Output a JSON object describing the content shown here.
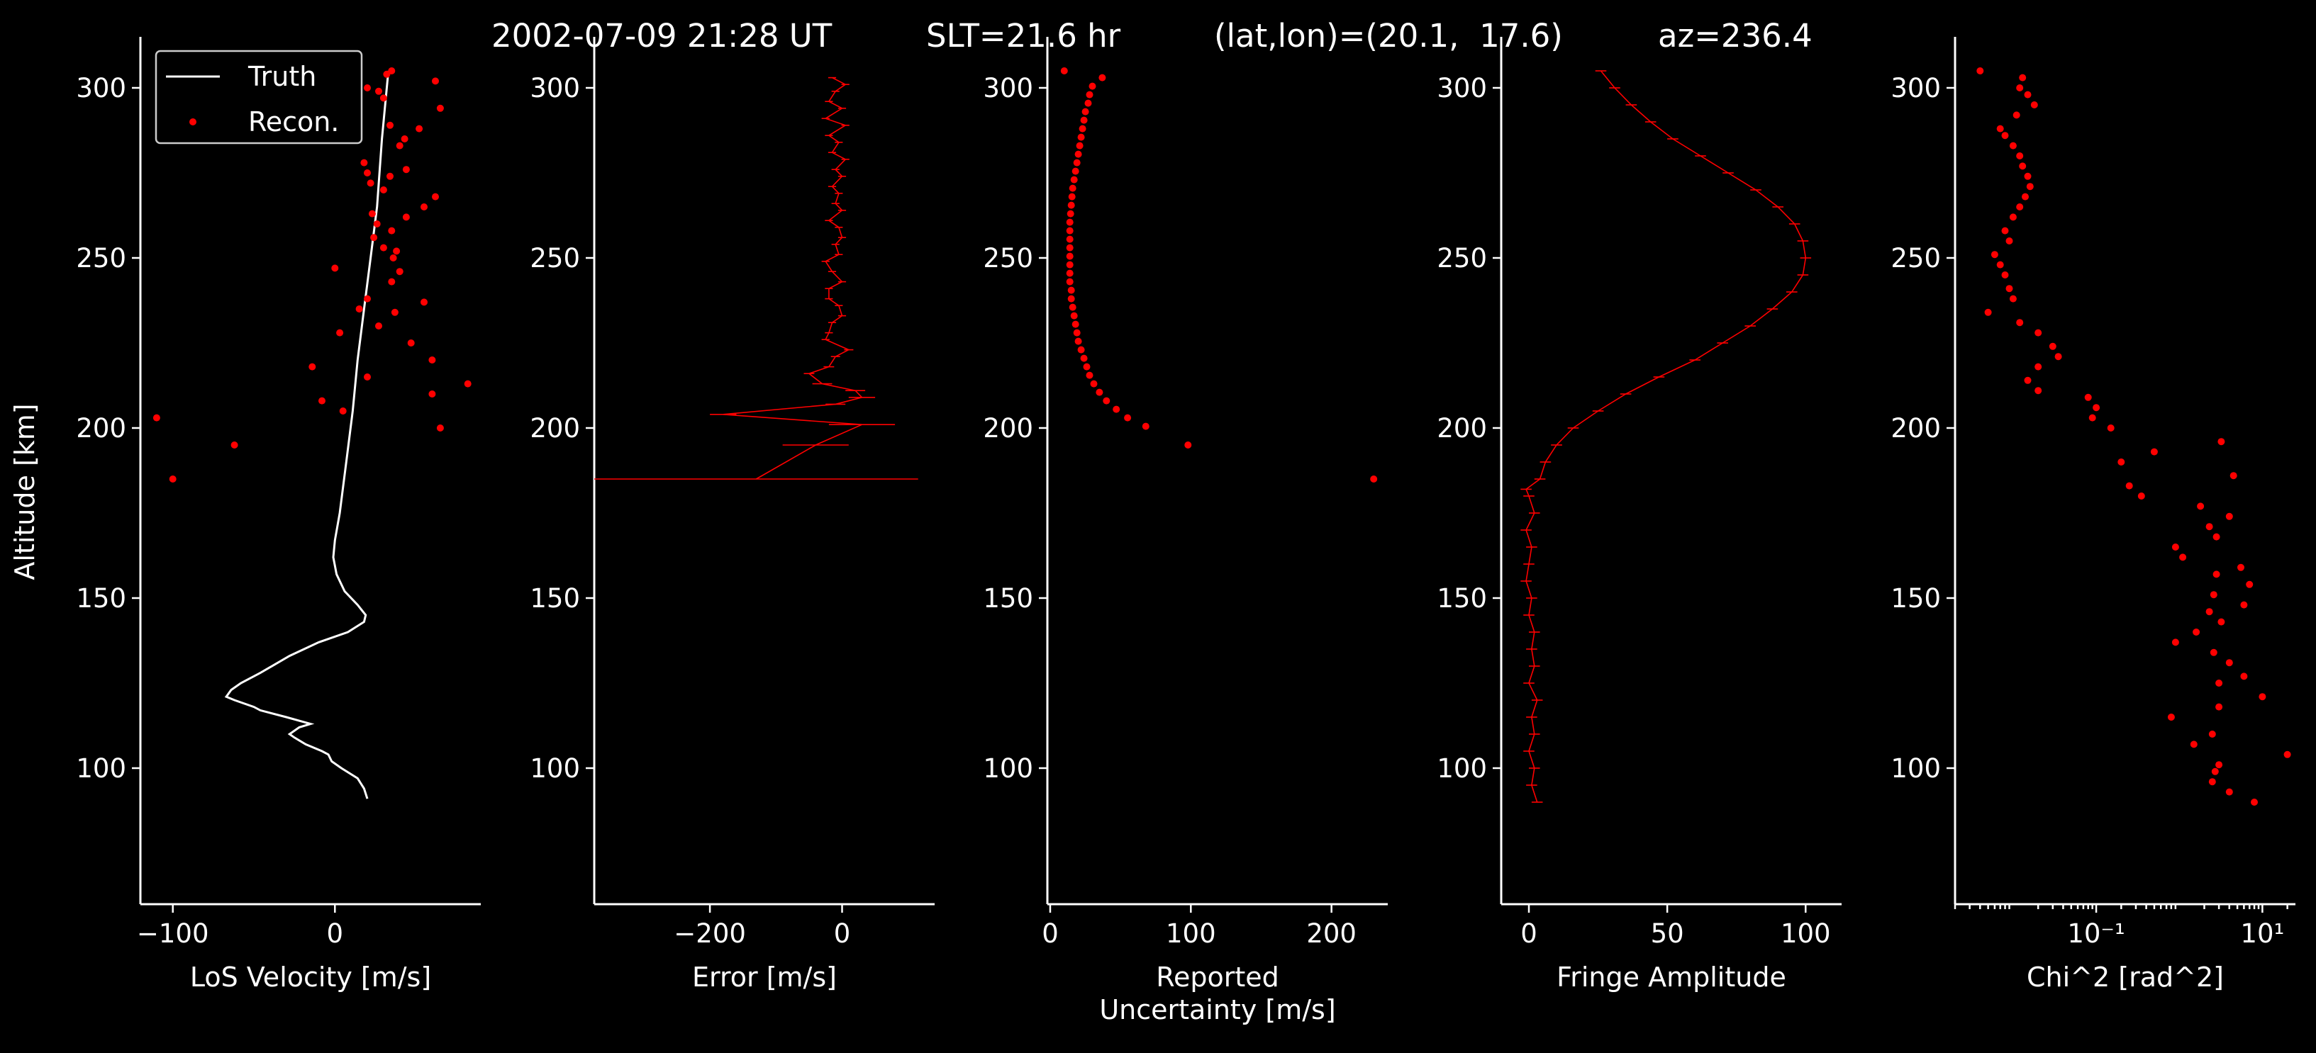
{
  "suptitle": {
    "time": "2002-07-09 21:28 UT",
    "slt": "SLT=21.6 hr",
    "latlon": "(lat,lon)=(20.1,  17.6)",
    "az": "az=236.4"
  },
  "colors": {
    "background": "#000000",
    "foreground": "#ffffff",
    "data": "#ff0000"
  },
  "chart_data": [
    {
      "type": "line",
      "xlabel": "LoS Velocity [m/s]",
      "ylabel": "Altitude [km]",
      "xlim": [
        -120,
        90
      ],
      "ylim": [
        60,
        315
      ],
      "xticks": [
        -100,
        0
      ],
      "xticklabels": [
        "−100",
        "0"
      ],
      "yticks": [
        100,
        150,
        200,
        250,
        300
      ],
      "yticklabels": [
        "100",
        "150",
        "200",
        "250",
        "300"
      ],
      "legend": {
        "placement": "top-left",
        "entries": [
          "Truth",
          "Recon."
        ]
      },
      "series": [
        {
          "name": "Truth",
          "style": "line",
          "color": "#ffffff",
          "x": [
            20,
            18,
            14,
            4,
            -2,
            -4,
            -8,
            -18,
            -25,
            -28,
            -22,
            -15,
            -30,
            -46,
            -50,
            -62,
            -67,
            -64,
            -58,
            -46,
            -28,
            -10,
            8,
            18,
            19,
            14,
            6,
            1,
            -1,
            0,
            3,
            7,
            11,
            14,
            18,
            22,
            26,
            29,
            33
          ],
          "y": [
            91,
            94,
            97,
            100,
            102,
            104,
            105,
            107,
            109,
            110,
            112,
            113,
            115,
            117,
            118,
            120,
            121,
            123,
            125,
            128,
            133,
            137,
            140,
            143,
            145,
            148,
            152,
            157,
            162,
            167,
            175,
            190,
            205,
            220,
            235,
            250,
            265,
            285,
            305
          ]
        },
        {
          "name": "Recon.",
          "style": "dots",
          "color": "#ff0000",
          "x": [
            -100,
            -62,
            -110,
            5,
            -8,
            65,
            60,
            82,
            -14,
            20,
            47,
            60,
            3,
            27,
            37,
            15,
            55,
            20,
            35,
            40,
            38,
            0,
            36,
            30,
            24,
            35,
            26,
            23,
            30,
            44,
            55,
            62,
            44,
            18,
            22,
            34,
            20,
            40,
            43,
            52,
            34,
            65,
            30,
            27,
            20,
            35,
            62,
            32
          ],
          "y": [
            185,
            195,
            203,
            205,
            208,
            200,
            210,
            213,
            218,
            215,
            225,
            220,
            228,
            230,
            234,
            235,
            237,
            238,
            243,
            246,
            252,
            247,
            250,
            253,
            256,
            258,
            260,
            263,
            270,
            262,
            265,
            268,
            276,
            278,
            272,
            274,
            275,
            283,
            285,
            288,
            289,
            294,
            297,
            299,
            300,
            305,
            302,
            304
          ]
        }
      ]
    },
    {
      "type": "line",
      "xlabel": "Error [m/s]",
      "xlim": [
        -375,
        140
      ],
      "ylim": [
        60,
        315
      ],
      "xticks": [
        -200,
        0
      ],
      "xticklabels": [
        "−200",
        "0"
      ],
      "yticks": [
        100,
        150,
        200,
        250,
        300
      ],
      "yticklabels": [
        "100",
        "150",
        "200",
        "250",
        "300"
      ],
      "series": [
        {
          "style": "errorbar",
          "color": "#ff0000",
          "y": [
            185,
            195,
            201,
            204,
            207,
            209,
            211,
            213,
            216,
            218,
            221,
            223,
            226,
            228,
            231,
            233,
            236,
            238,
            241,
            243,
            246,
            249,
            251,
            254,
            256,
            259,
            261,
            264,
            266,
            269,
            271,
            274,
            276,
            279,
            281,
            284,
            286,
            289,
            291,
            294,
            296,
            299,
            301,
            303
          ],
          "x": [
            -130,
            -40,
            30,
            -180,
            -10,
            30,
            20,
            -30,
            -50,
            -20,
            -10,
            10,
            -25,
            -20,
            -15,
            0,
            -5,
            -20,
            -20,
            0,
            -15,
            -25,
            -5,
            -10,
            0,
            -5,
            -20,
            0,
            -10,
            -5,
            -15,
            0,
            -10,
            5,
            -15,
            -5,
            -20,
            5,
            -25,
            0,
            -20,
            -10,
            5,
            -15
          ],
          "err": [
            245,
            50,
            50,
            20,
            15,
            20,
            15,
            15,
            8,
            8,
            7,
            7,
            6,
            6,
            6,
            6,
            6,
            6,
            6,
            6,
            6,
            6,
            6,
            6,
            6,
            6,
            6,
            6,
            6,
            6,
            6,
            6,
            6,
            6,
            6,
            6,
            6,
            6,
            6,
            6,
            6,
            6,
            6,
            6
          ]
        }
      ]
    },
    {
      "type": "scatter",
      "xlabel": "Reported\nUncertainty [m/s]",
      "xlim": [
        -2,
        240
      ],
      "ylim": [
        60,
        315
      ],
      "xticks": [
        0,
        100,
        200
      ],
      "xticklabels": [
        "0",
        "100",
        "200"
      ],
      "yticks": [
        100,
        150,
        200,
        250,
        300
      ],
      "yticklabels": [
        "100",
        "150",
        "200",
        "250",
        "300"
      ],
      "series": [
        {
          "style": "dots",
          "color": "#ff0000",
          "y": [
            185,
            195,
            200.5,
            203,
            205.5,
            208,
            210.5,
            213,
            215.5,
            218,
            220.5,
            223,
            225.5,
            228,
            230.5,
            233,
            235.5,
            238,
            240.5,
            243,
            245.5,
            248,
            250.5,
            253,
            255.5,
            258,
            260.5,
            263,
            265.5,
            268,
            270.5,
            273,
            275.5,
            278,
            280.5,
            283,
            285.5,
            288,
            290.5,
            293,
            295.5,
            298,
            300.5,
            303,
            305
          ],
          "x": [
            230,
            98,
            68,
            55,
            47,
            40,
            35,
            31,
            28,
            26,
            24,
            22,
            20,
            19,
            18,
            17,
            16,
            15,
            15,
            14,
            14,
            14,
            14,
            14,
            14,
            14,
            14,
            14.5,
            15,
            15.5,
            16,
            17,
            18,
            19,
            20,
            21,
            22,
            23,
            24,
            25,
            27,
            28,
            30,
            37,
            10
          ]
        }
      ]
    },
    {
      "type": "line",
      "xlabel": "Fringe Amplitude",
      "xlim": [
        -10,
        113
      ],
      "ylim": [
        60,
        315
      ],
      "xticks": [
        0,
        50,
        100
      ],
      "xticklabels": [
        "0",
        "50",
        "100"
      ],
      "yticks": [
        100,
        150,
        200,
        250,
        300
      ],
      "yticklabels": [
        "100",
        "150",
        "200",
        "250",
        "300"
      ],
      "series": [
        {
          "style": "errorbar",
          "color": "#ff0000",
          "y": [
            90,
            95,
            100,
            105,
            110,
            115,
            120,
            125,
            130,
            135,
            140,
            145,
            150,
            155,
            160,
            165,
            170,
            175,
            180,
            182,
            185,
            190,
            195,
            200,
            205,
            210,
            215,
            220,
            225,
            230,
            235,
            240,
            245,
            250,
            255,
            260,
            265,
            270,
            275,
            280,
            285,
            290,
            295,
            300,
            305
          ],
          "x": [
            3,
            1,
            2,
            0,
            2,
            1,
            3,
            0,
            2,
            1,
            2,
            0,
            1,
            -1,
            0,
            1,
            -1,
            2,
            0,
            -1,
            4,
            6,
            10,
            16,
            25,
            35,
            47,
            60,
            70,
            80,
            88,
            95,
            99,
            100,
            99,
            96,
            90,
            82,
            72,
            62,
            52,
            44,
            37,
            31,
            26
          ],
          "err": [
            2,
            2,
            2,
            2,
            2,
            2,
            2,
            2,
            2,
            2,
            2,
            2,
            2,
            2,
            2,
            2,
            2,
            2,
            2,
            2,
            2,
            2,
            2,
            2,
            2,
            2,
            2,
            2,
            2,
            2,
            2,
            2,
            2,
            2,
            2,
            2,
            2,
            2,
            2,
            2,
            2,
            2,
            2,
            2,
            2
          ]
        }
      ]
    },
    {
      "type": "scatter",
      "xlabel": "Chi^2 [rad^2]",
      "xscale": "log",
      "xlim": [
        0.002,
        25
      ],
      "ylim": [
        60,
        315
      ],
      "xticks": [
        0.1,
        10
      ],
      "xticklabels": [
        "10⁻¹",
        "10¹"
      ],
      "yticks": [
        100,
        150,
        200,
        250,
        300
      ],
      "yticklabels": [
        "100",
        "150",
        "200",
        "250",
        "300"
      ],
      "series": [
        {
          "style": "dots",
          "color": "#ff0000",
          "y": [
            90,
            93,
            96,
            99,
            101,
            104,
            107,
            110,
            115,
            118,
            121,
            125,
            127,
            131,
            134,
            137,
            140,
            143,
            146,
            148,
            151,
            154,
            157,
            159,
            162,
            165,
            168,
            171,
            174,
            177,
            180,
            183,
            186,
            190,
            193,
            196,
            200,
            203,
            206,
            209,
            211,
            214,
            218,
            221,
            224,
            228,
            231,
            234,
            238,
            241,
            245,
            248,
            251,
            255,
            258,
            262,
            265,
            268,
            271,
            274,
            277,
            280,
            283,
            286,
            288,
            292,
            295,
            298,
            300,
            303,
            305
          ],
          "x": [
            8,
            4,
            2.5,
            2.7,
            3,
            20,
            1.5,
            2.5,
            0.8,
            3,
            10,
            3,
            6,
            4,
            2.6,
            0.9,
            1.6,
            3.2,
            2.3,
            6,
            2.6,
            7,
            2.8,
            5.5,
            1.1,
            0.9,
            2.8,
            2.3,
            4,
            1.8,
            0.35,
            0.25,
            4.5,
            0.2,
            0.5,
            3.2,
            0.15,
            0.09,
            0.1,
            0.08,
            0.02,
            0.015,
            0.02,
            0.035,
            0.03,
            0.02,
            0.012,
            0.005,
            0.01,
            0.009,
            0.008,
            0.007,
            0.006,
            0.009,
            0.008,
            0.01,
            0.012,
            0.014,
            0.016,
            0.015,
            0.013,
            0.012,
            0.01,
            0.008,
            0.007,
            0.011,
            0.018,
            0.015,
            0.012,
            0.013,
            0.004
          ]
        }
      ]
    }
  ]
}
